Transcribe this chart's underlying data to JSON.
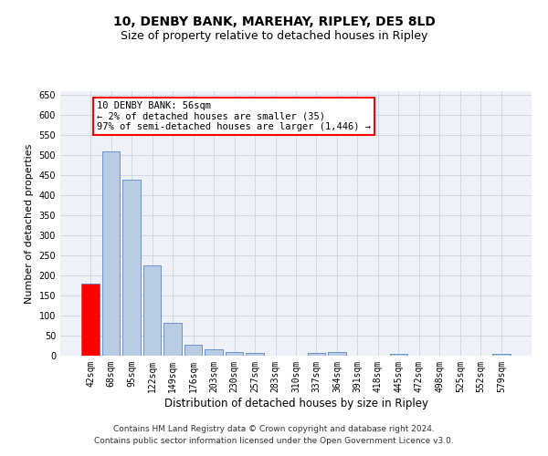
{
  "title": "10, DENBY BANK, MAREHAY, RIPLEY, DE5 8LD",
  "subtitle": "Size of property relative to detached houses in Ripley",
  "xlabel": "Distribution of detached houses by size in Ripley",
  "ylabel": "Number of detached properties",
  "categories": [
    "42sqm",
    "68sqm",
    "95sqm",
    "122sqm",
    "149sqm",
    "176sqm",
    "203sqm",
    "230sqm",
    "257sqm",
    "283sqm",
    "310sqm",
    "337sqm",
    "364sqm",
    "391sqm",
    "418sqm",
    "445sqm",
    "472sqm",
    "498sqm",
    "525sqm",
    "552sqm",
    "579sqm"
  ],
  "values": [
    180,
    510,
    440,
    225,
    83,
    28,
    15,
    10,
    7,
    0,
    0,
    7,
    10,
    0,
    0,
    5,
    0,
    0,
    0,
    0,
    5
  ],
  "bar_color": "#b8cce4",
  "bar_edge_color": "#4472c4",
  "highlight_bar_index": 0,
  "highlight_bar_color": "#ff0000",
  "annotation_text": "10 DENBY BANK: 56sqm\n← 2% of detached houses are smaller (35)\n97% of semi-detached houses are larger (1,446) →",
  "annotation_box_color": "#ffffff",
  "annotation_box_edge_color": "#ff0000",
  "ylim": [
    0,
    660
  ],
  "yticks": [
    0,
    50,
    100,
    150,
    200,
    250,
    300,
    350,
    400,
    450,
    500,
    550,
    600,
    650
  ],
  "grid_color": "#d0d8e8",
  "background_color": "#eef2f8",
  "footer_text": "Contains HM Land Registry data © Crown copyright and database right 2024.\nContains public sector information licensed under the Open Government Licence v3.0.",
  "title_fontsize": 10,
  "subtitle_fontsize": 9,
  "xlabel_fontsize": 8.5,
  "ylabel_fontsize": 8,
  "tick_fontsize": 7,
  "annotation_fontsize": 7.5,
  "footer_fontsize": 6.5
}
